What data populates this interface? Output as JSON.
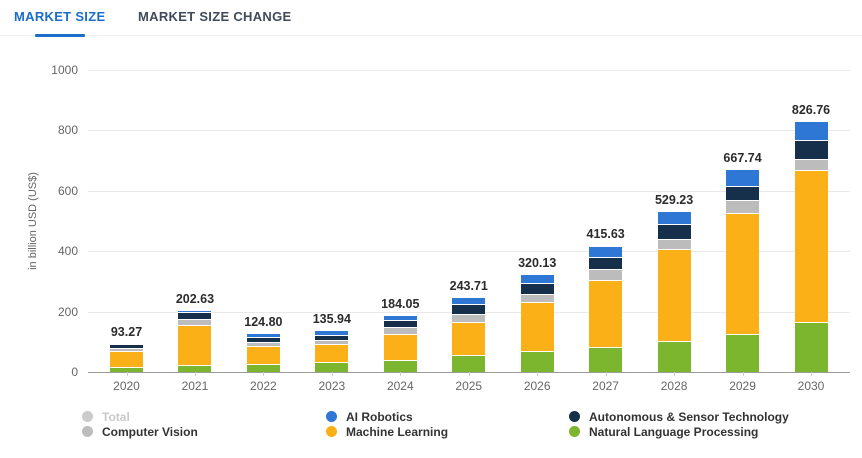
{
  "tabs": [
    {
      "label": "MARKET SIZE",
      "active": true
    },
    {
      "label": "MARKET SIZE CHANGE",
      "active": false
    }
  ],
  "chart_data": {
    "type": "bar",
    "stacked": true,
    "ylabel": "in billion USD (US$)",
    "ylim": [
      0,
      1000
    ],
    "y_ticks": [
      0,
      200,
      400,
      600,
      800,
      1000
    ],
    "grid": true,
    "categories": [
      "2020",
      "2021",
      "2022",
      "2023",
      "2024",
      "2025",
      "2026",
      "2027",
      "2028",
      "2029",
      "2030"
    ],
    "total_labels": [
      "93.27",
      "202.63",
      "124.80",
      "135.94",
      "184.05",
      "243.71",
      "320.13",
      "415.63",
      "529.23",
      "667.74",
      "826.76"
    ],
    "totals": [
      93.27,
      202.63,
      124.8,
      135.94,
      184.05,
      243.71,
      320.13,
      415.63,
      529.23,
      667.74,
      826.76
    ],
    "series": [
      {
        "name": "Natural Language Processing",
        "color": "#7cb52e",
        "values": [
          13.3,
          21.0,
          22.5,
          31.5,
          37.8,
          53.4,
          67.1,
          78.7,
          97.9,
          122.2,
          161.2
        ]
      },
      {
        "name": "Machine Learning",
        "color": "#fbb017",
        "values": [
          52.0,
          130.6,
          60.0,
          57.5,
          83.3,
          108.7,
          161.6,
          223.3,
          304.6,
          399.5,
          505.9
        ]
      },
      {
        "name": "Computer Vision",
        "color": "#bcbcbc",
        "values": [
          10.5,
          20.0,
          13.5,
          15.0,
          25.2,
          28.2,
          25.6,
          35.9,
          35.9,
          44.7,
          36.4
        ]
      },
      {
        "name": "Autonomous & Sensor Technology",
        "color": "#16304c",
        "values": [
          14.0,
          26.0,
          16.0,
          16.5,
          21.3,
          30.1,
          36.4,
          40.9,
          49.9,
          45.7,
          60.4
        ]
      },
      {
        "name": "AI Robotics",
        "color": "#2e77d4",
        "values": [
          3.5,
          5.0,
          12.8,
          15.4,
          16.5,
          23.3,
          29.5,
          36.9,
          40.9,
          55.6,
          62.9
        ]
      }
    ],
    "legend": {
      "position": "bottom",
      "items": [
        {
          "label": "Total",
          "color": "#cbcbcb",
          "disabled": true
        },
        {
          "label": "Computer Vision",
          "color": "#bcbcbc",
          "disabled": false
        },
        {
          "label": "AI Robotics",
          "color": "#2e77d4",
          "disabled": false
        },
        {
          "label": "Machine Learning",
          "color": "#fbb017",
          "disabled": false
        },
        {
          "label": "Autonomous & Sensor Technology",
          "color": "#16304c",
          "disabled": false
        },
        {
          "label": "Natural Language Processing",
          "color": "#7cb52e",
          "disabled": false
        }
      ]
    }
  }
}
